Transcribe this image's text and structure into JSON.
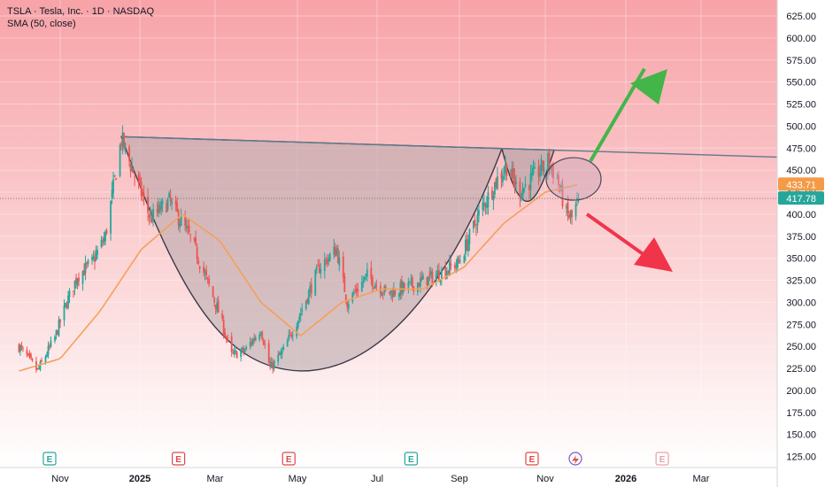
{
  "legend": {
    "title": "TSLA · Tesla, Inc. · 1D · NASDAQ",
    "indicator": "SMA (50, close)"
  },
  "colors": {
    "up": "#26a69a",
    "down": "#ef5350",
    "sma": "#f5a05a",
    "trendline": "#5d7a8c",
    "cup_fill": "#b8aeb3",
    "bg_top": "#f7a9ad",
    "bg_bottom": "#ffffff",
    "price_badge": "#26a69a",
    "sma_badge": "#f59a47",
    "green_arrow": "#43b549",
    "red_arrow": "#f0354a"
  },
  "chart_data": {
    "type": "candlestick",
    "symbol": "TSLA",
    "x_ticks": [
      "Nov",
      "2025",
      "Mar",
      "May",
      "Jul",
      "Sep",
      "Nov",
      "2026",
      "Mar"
    ],
    "y_ticks": [
      125,
      150,
      175,
      200,
      225,
      250,
      275,
      300,
      325,
      350,
      375,
      400,
      425,
      450,
      475,
      500,
      525,
      550,
      575,
      600,
      625
    ],
    "ylim": [
      110,
      640
    ],
    "last_price": "417.78",
    "sma_value": "433.71",
    "price_keypoints": [
      {
        "date": "2024-10-01",
        "price": 250
      },
      {
        "date": "2024-10-15",
        "price": 222
      },
      {
        "date": "2024-10-28",
        "price": 260
      },
      {
        "date": "2024-11-06",
        "price": 300
      },
      {
        "date": "2024-11-14",
        "price": 330
      },
      {
        "date": "2024-11-25",
        "price": 345
      },
      {
        "date": "2024-12-05",
        "price": 375
      },
      {
        "date": "2024-12-17",
        "price": 485
      },
      {
        "date": "2024-12-28",
        "price": 440
      },
      {
        "date": "2025-01-08",
        "price": 395
      },
      {
        "date": "2025-01-22",
        "price": 415
      },
      {
        "date": "2025-02-08",
        "price": 370
      },
      {
        "date": "2025-02-28",
        "price": 290
      },
      {
        "date": "2025-03-10",
        "price": 240
      },
      {
        "date": "2025-03-20",
        "price": 245
      },
      {
        "date": "2025-04-01",
        "price": 270
      },
      {
        "date": "2025-04-08",
        "price": 225
      },
      {
        "date": "2025-04-18",
        "price": 245
      },
      {
        "date": "2025-04-30",
        "price": 285
      },
      {
        "date": "2025-05-15",
        "price": 340
      },
      {
        "date": "2025-05-28",
        "price": 360
      },
      {
        "date": "2025-06-05",
        "price": 300
      },
      {
        "date": "2025-06-20",
        "price": 330
      },
      {
        "date": "2025-07-05",
        "price": 310
      },
      {
        "date": "2025-07-25",
        "price": 320
      },
      {
        "date": "2025-08-10",
        "price": 330
      },
      {
        "date": "2025-08-28",
        "price": 345
      },
      {
        "date": "2025-09-12",
        "price": 400
      },
      {
        "date": "2025-09-26",
        "price": 440
      },
      {
        "date": "2025-10-03",
        "price": 455
      },
      {
        "date": "2025-10-12",
        "price": 425
      },
      {
        "date": "2025-10-22",
        "price": 440
      },
      {
        "date": "2025-11-03",
        "price": 460
      },
      {
        "date": "2025-11-10",
        "price": 440
      },
      {
        "date": "2025-11-17",
        "price": 400
      },
      {
        "date": "2025-11-21",
        "price": 395
      },
      {
        "date": "2025-11-26",
        "price": 417
      }
    ],
    "sma_keypoints": [
      {
        "date": "2024-10-01",
        "price": 222
      },
      {
        "date": "2024-11-01",
        "price": 236
      },
      {
        "date": "2024-12-01",
        "price": 290
      },
      {
        "date": "2025-01-01",
        "price": 360
      },
      {
        "date": "2025-02-01",
        "price": 400
      },
      {
        "date": "2025-03-01",
        "price": 370
      },
      {
        "date": "2025-04-01",
        "price": 300
      },
      {
        "date": "2025-05-01",
        "price": 262
      },
      {
        "date": "2025-06-01",
        "price": 300
      },
      {
        "date": "2025-07-01",
        "price": 315
      },
      {
        "date": "2025-08-01",
        "price": 315
      },
      {
        "date": "2025-09-01",
        "price": 340
      },
      {
        "date": "2025-10-01",
        "price": 390
      },
      {
        "date": "2025-11-01",
        "price": 425
      },
      {
        "date": "2025-11-26",
        "price": 433.71
      }
    ],
    "trendline": [
      {
        "date": "2024-12-17",
        "price": 488
      },
      {
        "date": "2026-06-01",
        "price": 463
      }
    ],
    "earnings_markers": [
      {
        "date": "2024-10-24",
        "label": "E",
        "kind": "up"
      },
      {
        "date": "2025-01-29",
        "label": "E",
        "kind": "down"
      },
      {
        "date": "2025-04-22",
        "label": "E",
        "kind": "down"
      },
      {
        "date": "2025-07-23",
        "label": "E",
        "kind": "up"
      },
      {
        "date": "2025-10-22",
        "label": "E",
        "kind": "down"
      },
      {
        "date": "2026-01-28",
        "label": "E",
        "kind": "future"
      }
    ]
  }
}
